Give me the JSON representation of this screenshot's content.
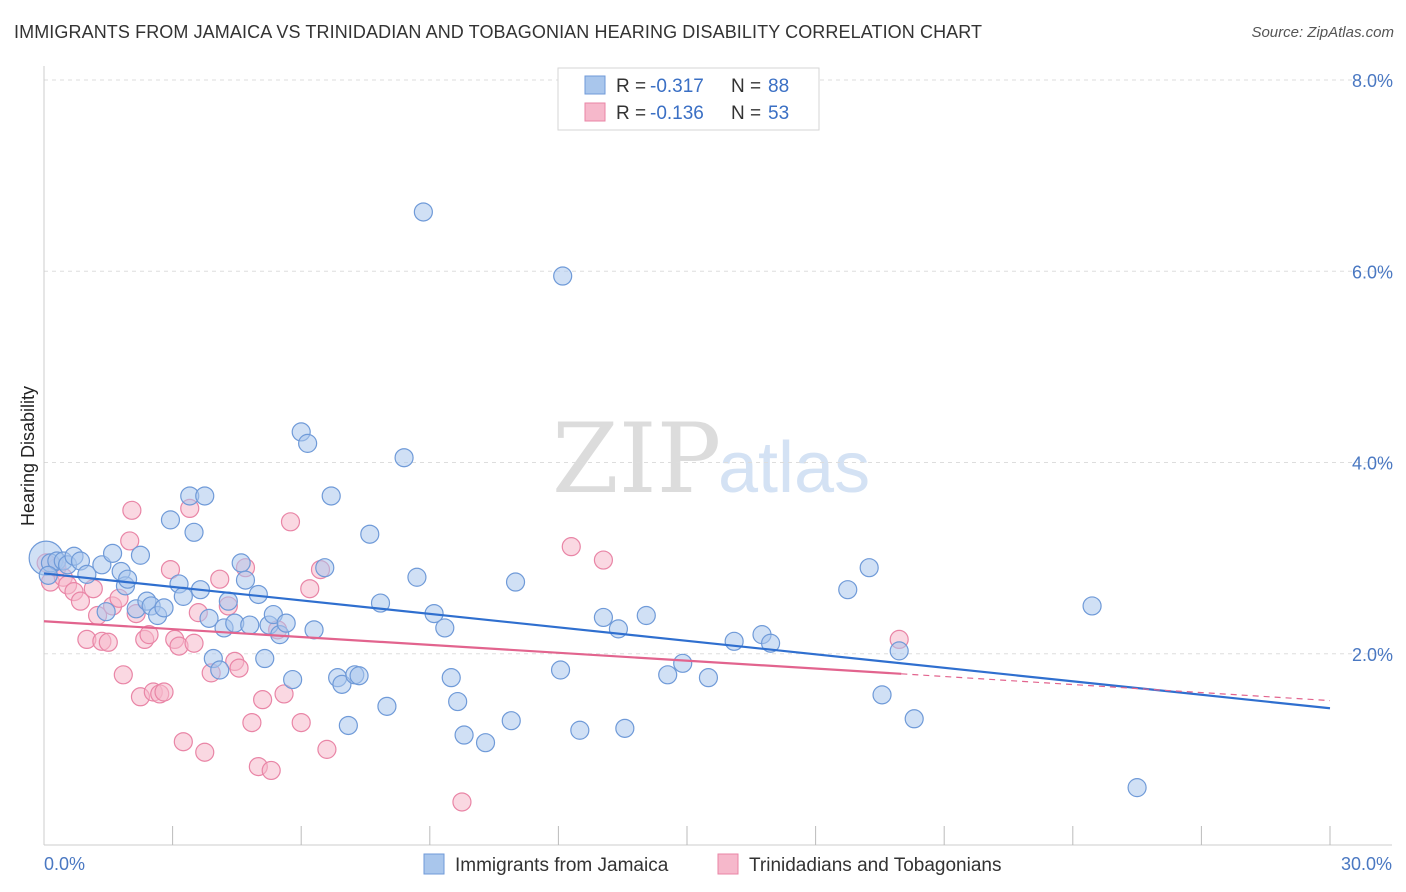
{
  "header": {
    "title": "IMMIGRANTS FROM JAMAICA VS TRINIDADIAN AND TOBAGONIAN HEARING DISABILITY CORRELATION CHART",
    "source": "Source: ZipAtlas.com"
  },
  "watermark": {
    "zip": "ZIP",
    "atlas": "atlas"
  },
  "legend": {
    "r_label": "R =",
    "n_label": "N =",
    "entries": [
      {
        "r": "-0.317",
        "n": "88"
      },
      {
        "r": "-0.136",
        "n": "53"
      }
    ]
  },
  "colors": {
    "blue_fill": "#a9c6ec",
    "blue_stroke": "#6f9ad8",
    "blue_line": "#2f6fcf",
    "pink_fill": "#f6b8cb",
    "pink_stroke": "#e985a6",
    "pink_line": "#e2648e",
    "grid": "#dddddd",
    "tick_label": "#4a78c2"
  },
  "chart_data": {
    "type": "scatter",
    "title": "IMMIGRANTS FROM JAMAICA VS TRINIDADIAN AND TOBAGONIAN HEARING DISABILITY CORRELATION CHART",
    "xlabel": "",
    "ylabel": "Hearing Disability",
    "xlim": [
      0,
      30
    ],
    "ylim": [
      0,
      8
    ],
    "x_tick_labels": [
      "0.0%",
      "30.0%"
    ],
    "y_ticks": [
      2,
      4,
      6,
      8
    ],
    "y_tick_labels": [
      "2.0%",
      "4.0%",
      "6.0%",
      "8.0%"
    ],
    "legend_position": "top-center",
    "series": [
      {
        "name": "Immigrants from Jamaica",
        "color": "#a9c6ec",
        "trend": {
          "x0": 0,
          "y0": 2.84,
          "x1": 30,
          "y1": 1.43
        },
        "points": [
          [
            0.05,
            3.0
          ],
          [
            0.15,
            2.95
          ],
          [
            0.3,
            2.97
          ],
          [
            0.45,
            2.97
          ],
          [
            0.55,
            2.93
          ],
          [
            0.7,
            3.02
          ],
          [
            0.85,
            2.97
          ],
          [
            1.0,
            2.83
          ],
          [
            1.35,
            2.93
          ],
          [
            1.6,
            3.05
          ],
          [
            1.45,
            2.44
          ],
          [
            1.8,
            2.86
          ],
          [
            1.9,
            2.71
          ],
          [
            1.95,
            2.78
          ],
          [
            2.15,
            2.47
          ],
          [
            2.25,
            3.03
          ],
          [
            2.4,
            2.55
          ],
          [
            2.5,
            2.5
          ],
          [
            2.65,
            2.4
          ],
          [
            2.8,
            2.48
          ],
          [
            2.95,
            3.4
          ],
          [
            3.15,
            2.73
          ],
          [
            3.25,
            2.6
          ],
          [
            3.4,
            3.65
          ],
          [
            3.5,
            3.27
          ],
          [
            3.65,
            2.67
          ],
          [
            3.75,
            3.65
          ],
          [
            3.85,
            2.37
          ],
          [
            3.95,
            1.95
          ],
          [
            4.1,
            1.83
          ],
          [
            4.2,
            2.27
          ],
          [
            4.3,
            2.55
          ],
          [
            4.45,
            2.32
          ],
          [
            4.6,
            2.95
          ],
          [
            4.7,
            2.77
          ],
          [
            4.8,
            2.3
          ],
          [
            5.0,
            2.62
          ],
          [
            5.15,
            1.95
          ],
          [
            5.25,
            2.3
          ],
          [
            5.35,
            2.41
          ],
          [
            5.5,
            2.2
          ],
          [
            5.65,
            2.32
          ],
          [
            5.8,
            1.73
          ],
          [
            6.0,
            4.32
          ],
          [
            6.15,
            4.2
          ],
          [
            6.3,
            2.25
          ],
          [
            6.55,
            2.9
          ],
          [
            6.7,
            3.65
          ],
          [
            6.85,
            1.75
          ],
          [
            6.95,
            1.68
          ],
          [
            7.1,
            1.25
          ],
          [
            7.25,
            1.78
          ],
          [
            7.35,
            1.77
          ],
          [
            7.6,
            3.25
          ],
          [
            7.85,
            2.53
          ],
          [
            8.0,
            1.45
          ],
          [
            8.4,
            4.05
          ],
          [
            8.7,
            2.8
          ],
          [
            8.85,
            6.62
          ],
          [
            9.1,
            2.42
          ],
          [
            9.35,
            2.27
          ],
          [
            9.5,
            1.75
          ],
          [
            9.65,
            1.5
          ],
          [
            9.8,
            1.15
          ],
          [
            10.3,
            1.07
          ],
          [
            10.9,
            1.3
          ],
          [
            11.0,
            2.75
          ],
          [
            12.05,
            1.83
          ],
          [
            12.1,
            5.95
          ],
          [
            12.5,
            1.2
          ],
          [
            13.05,
            2.38
          ],
          [
            13.4,
            2.26
          ],
          [
            13.55,
            1.22
          ],
          [
            14.05,
            2.4
          ],
          [
            14.55,
            1.78
          ],
          [
            14.9,
            1.9
          ],
          [
            15.5,
            1.75
          ],
          [
            16.1,
            2.13
          ],
          [
            16.75,
            2.2
          ],
          [
            16.95,
            2.11
          ],
          [
            18.75,
            2.67
          ],
          [
            19.25,
            2.9
          ],
          [
            19.55,
            1.57
          ],
          [
            19.95,
            2.03
          ],
          [
            20.3,
            1.32
          ],
          [
            24.45,
            2.5
          ],
          [
            25.5,
            0.6
          ],
          [
            0.1,
            2.82
          ]
        ]
      },
      {
        "name": "Trinidadians and Tobagonians",
        "color": "#f6b8cb",
        "trend": {
          "x0": 0,
          "y0": 2.34,
          "x1": 20.0,
          "y1": 1.79,
          "dashed_to": {
            "x": 30,
            "y": 1.51
          }
        },
        "points": [
          [
            0.05,
            2.95
          ],
          [
            0.15,
            2.75
          ],
          [
            0.3,
            2.9
          ],
          [
            0.45,
            2.8
          ],
          [
            0.55,
            2.72
          ],
          [
            0.7,
            2.65
          ],
          [
            0.85,
            2.55
          ],
          [
            1.0,
            2.15
          ],
          [
            1.15,
            2.68
          ],
          [
            1.25,
            2.4
          ],
          [
            1.35,
            2.13
          ],
          [
            1.5,
            2.12
          ],
          [
            1.6,
            2.5
          ],
          [
            1.75,
            2.58
          ],
          [
            1.85,
            1.78
          ],
          [
            2.0,
            3.18
          ],
          [
            2.05,
            3.5
          ],
          [
            2.15,
            2.42
          ],
          [
            2.25,
            1.55
          ],
          [
            2.35,
            2.15
          ],
          [
            2.45,
            2.2
          ],
          [
            2.55,
            1.6
          ],
          [
            2.7,
            1.58
          ],
          [
            2.8,
            1.6
          ],
          [
            2.95,
            2.88
          ],
          [
            3.05,
            2.15
          ],
          [
            3.15,
            2.08
          ],
          [
            3.25,
            1.08
          ],
          [
            3.4,
            3.52
          ],
          [
            3.5,
            2.11
          ],
          [
            3.6,
            2.43
          ],
          [
            3.75,
            0.97
          ],
          [
            3.9,
            1.8
          ],
          [
            4.1,
            2.78
          ],
          [
            4.3,
            2.5
          ],
          [
            4.45,
            1.92
          ],
          [
            4.55,
            1.85
          ],
          [
            4.7,
            2.9
          ],
          [
            4.85,
            1.28
          ],
          [
            5.0,
            0.82
          ],
          [
            5.1,
            1.52
          ],
          [
            5.3,
            0.78
          ],
          [
            5.45,
            2.25
          ],
          [
            5.6,
            1.58
          ],
          [
            5.75,
            3.38
          ],
          [
            6.0,
            1.28
          ],
          [
            6.2,
            2.68
          ],
          [
            6.45,
            2.88
          ],
          [
            6.6,
            1.0
          ],
          [
            9.75,
            0.45
          ],
          [
            12.3,
            3.12
          ],
          [
            13.05,
            2.98
          ],
          [
            19.95,
            2.15
          ]
        ]
      }
    ],
    "bottom_legend": [
      "Immigrants from Jamaica",
      "Trinidadians and Tobagonians"
    ]
  }
}
